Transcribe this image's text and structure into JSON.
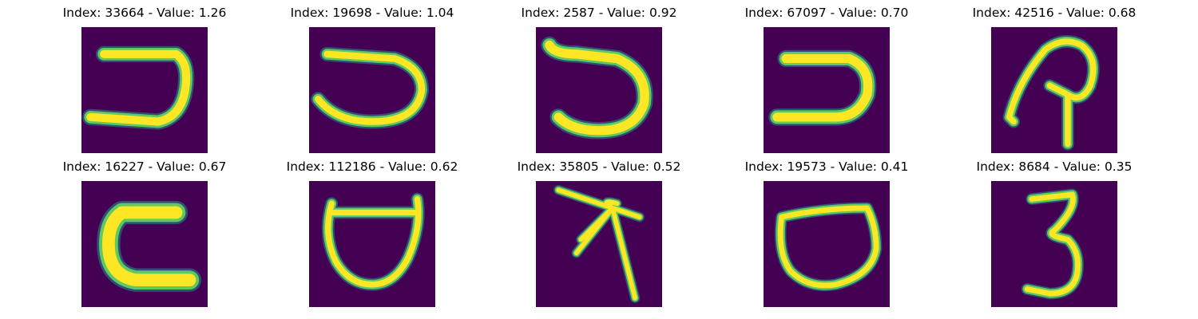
{
  "palette": {
    "background": "#440154",
    "low": "#21918c",
    "mid": "#5ec962",
    "high": "#fde725"
  },
  "tiles": [
    {
      "index": "33664",
      "value": "1.26",
      "title": "Index: 33664 - Value: 1.26",
      "glyph": "hook-j-icon"
    },
    {
      "index": "19698",
      "value": "1.04",
      "title": "Index: 19698 - Value: 1.04",
      "glyph": "hook-j-icon"
    },
    {
      "index": "2587",
      "value": "0.92",
      "title": "Index: 2587 - Value: 0.92",
      "glyph": "hook-j-icon"
    },
    {
      "index": "67097",
      "value": "0.70",
      "title": "Index: 67097 - Value: 0.70",
      "glyph": "hook-j-icon"
    },
    {
      "index": "42516",
      "value": "0.68",
      "title": "Index: 42516 - Value: 0.68",
      "glyph": "loop-arrow-icon"
    },
    {
      "index": "16227",
      "value": "0.67",
      "title": "Index: 16227 - Value: 0.67",
      "glyph": "c-shape-icon"
    },
    {
      "index": "112186",
      "value": "0.62",
      "title": "Index: 112186 - Value: 0.62",
      "glyph": "cup-icon"
    },
    {
      "index": "35805",
      "value": "0.52",
      "title": "Index: 35805 - Value: 0.52",
      "glyph": "star-burst-icon"
    },
    {
      "index": "19573",
      "value": "0.41",
      "title": "Index: 19573 - Value: 0.41",
      "glyph": "pot-icon"
    },
    {
      "index": "8684",
      "value": "0.35",
      "title": "Index: 8684 - Value: 0.35",
      "glyph": "three-icon"
    }
  ]
}
